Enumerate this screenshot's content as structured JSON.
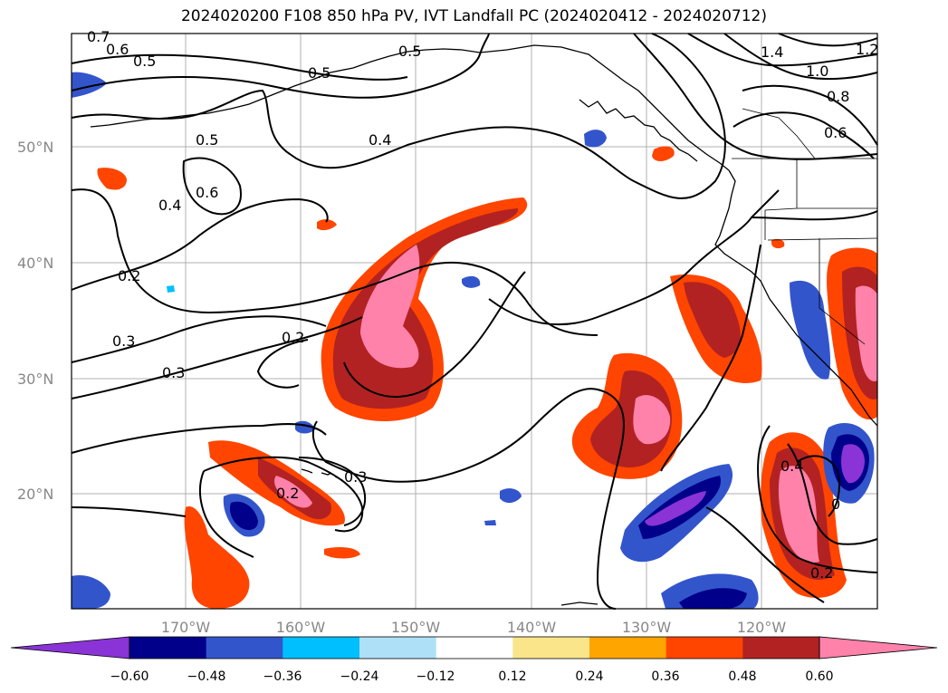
{
  "title": "2024020200 F108 850 hPa PV, IVT Landfall PC (2024020412 - 2024020712)",
  "axes": {
    "lat_ticks": [
      "50°N",
      "40°N",
      "30°N",
      "20°N"
    ],
    "lon_ticks": [
      "170°W",
      "160°W",
      "150°W",
      "140°W",
      "130°W",
      "120°W"
    ]
  },
  "contour_labels": [
    "0.7",
    "0.6",
    "0.5",
    "0.5",
    "0.5",
    "0.5",
    "0.6",
    "0.4",
    "0.4",
    "0.2",
    "0.3",
    "0.3",
    "0.2",
    "0.3",
    "0.2",
    "1.4",
    "1.2",
    "1.0",
    "0.8",
    "0.6",
    "0.4",
    "0.2",
    "0"
  ],
  "colorbar": {
    "ticks": [
      "−0.60",
      "−0.48",
      "−0.36",
      "−0.24",
      "−0.12",
      "0.12",
      "0.24",
      "0.36",
      "0.48",
      "0.60"
    ],
    "colors": [
      "#8a33d6",
      "#00008b",
      "#3355cc",
      "#00bfff",
      "#aee0f8",
      "#ffffff",
      "#fbe58a",
      "#ffa500",
      "#ff4500",
      "#b22222",
      "#ff82ab"
    ]
  }
}
